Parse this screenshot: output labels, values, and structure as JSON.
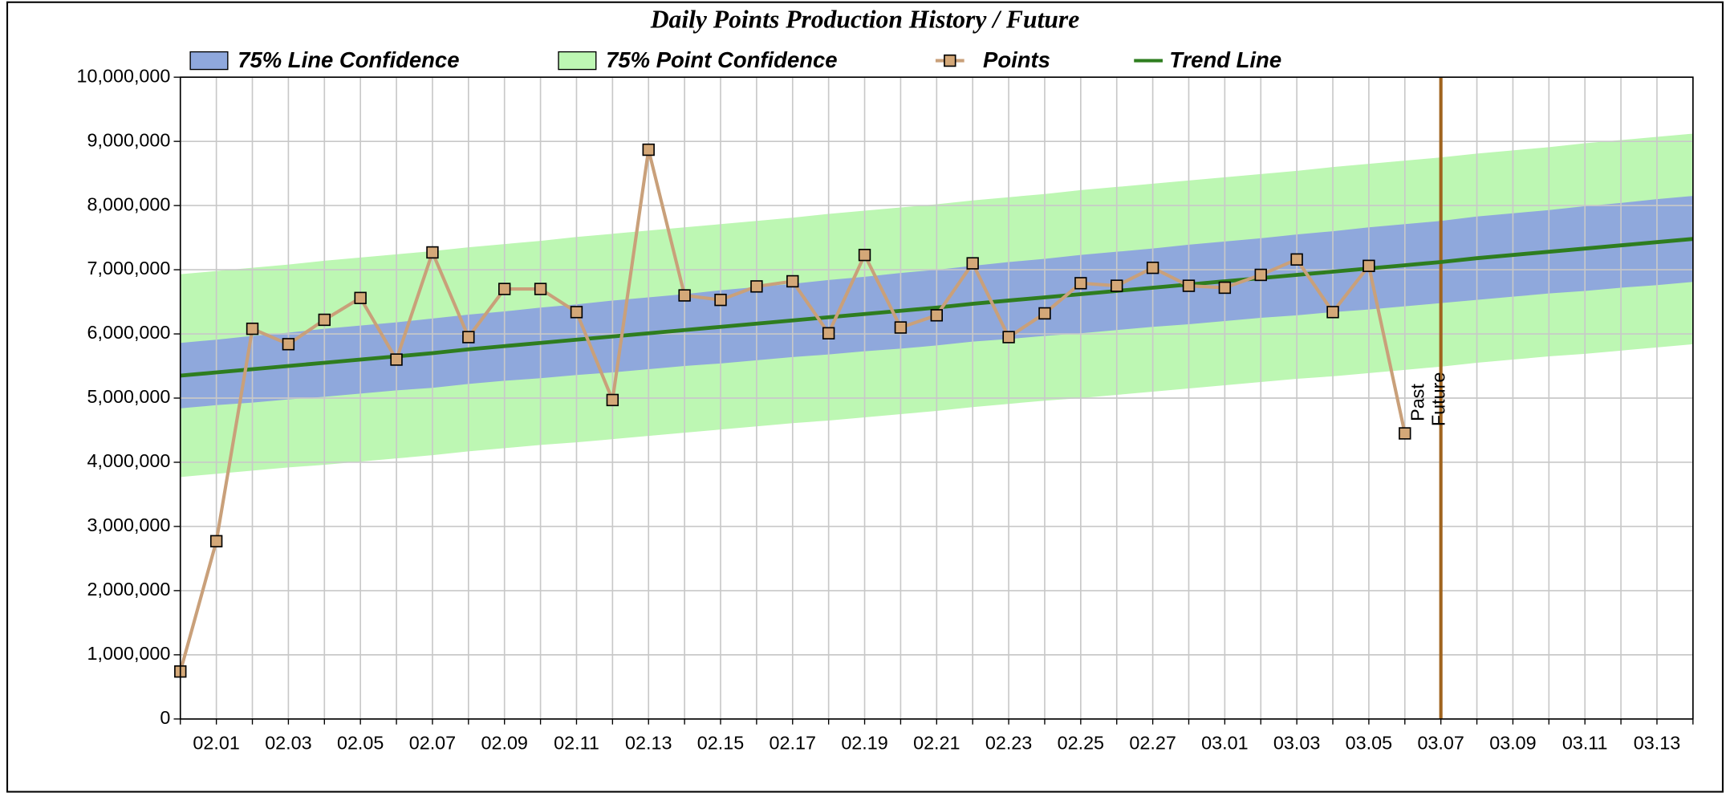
{
  "chart_data": {
    "type": "line",
    "title": "Daily Points Production History / Future",
    "categories": [
      null,
      "02.01",
      null,
      "02.03",
      null,
      "02.05",
      null,
      "02.07",
      null,
      "02.09",
      null,
      "02.11",
      null,
      "02.13",
      null,
      "02.15",
      null,
      "02.17",
      null,
      "02.19",
      null,
      "02.21",
      null,
      "02.23",
      null,
      "02.25",
      null,
      "02.27",
      null,
      "03.01",
      null,
      "03.03",
      null,
      "03.05",
      null,
      "03.07",
      null,
      "03.09",
      null,
      "03.11",
      null,
      "03.13",
      null
    ],
    "ylim": [
      0,
      10000000
    ],
    "yticks": [
      0,
      {
        "value": 1000000,
        "label": "1,000,000"
      },
      {
        "value": 2000000,
        "label": "2,000,000"
      },
      {
        "value": 3000000,
        "label": "3,000,000"
      },
      {
        "value": 4000000,
        "label": "4,000,000"
      },
      {
        "value": 5000000,
        "label": "5,000,000"
      },
      {
        "value": 6000000,
        "label": "6,000,000"
      },
      {
        "value": 7000000,
        "label": "7,000,000"
      },
      {
        "value": 8000000,
        "label": "8,000,000"
      },
      {
        "value": 9000000,
        "label": "9,000,000"
      },
      {
        "value": 10000000,
        "label": "10,000,000"
      }
    ],
    "grid": true,
    "bands": [
      {
        "name": "75% Point Confidence",
        "color": "#bdf7b3",
        "lower": [
          3770000,
          3820000,
          3870000,
          3920000,
          3960000,
          4010000,
          4060000,
          4110000,
          4170000,
          4220000,
          4270000,
          4310000,
          4360000,
          4410000,
          4460000,
          4510000,
          4560000,
          4610000,
          4650000,
          4700000,
          4750000,
          4800000,
          4860000,
          4910000,
          4960000,
          5000000,
          5050000,
          5100000,
          5150000,
          5200000,
          5250000,
          5300000,
          5340000,
          5390000,
          5440000,
          5490000,
          5550000,
          5600000,
          5650000,
          5690000,
          5740000,
          5790000,
          5840000
        ],
        "upper": [
          6930000,
          6980000,
          7030000,
          7080000,
          7140000,
          7190000,
          7240000,
          7290000,
          7350000,
          7400000,
          7450000,
          7510000,
          7560000,
          7610000,
          7660000,
          7710000,
          7760000,
          7810000,
          7870000,
          7920000,
          7970000,
          8020000,
          8080000,
          8130000,
          8180000,
          8240000,
          8290000,
          8340000,
          8390000,
          8440000,
          8490000,
          8540000,
          8600000,
          8650000,
          8700000,
          8750000,
          8810000,
          8860000,
          8910000,
          8970000,
          9020000,
          9070000,
          9120000
        ]
      },
      {
        "name": "75% Line Confidence",
        "color": "#8fa8dc",
        "lower": [
          4840000,
          4890000,
          4930000,
          4980000,
          5020000,
          5070000,
          5120000,
          5160000,
          5220000,
          5270000,
          5310000,
          5360000,
          5400000,
          5450000,
          5500000,
          5540000,
          5590000,
          5640000,
          5680000,
          5730000,
          5770000,
          5820000,
          5880000,
          5920000,
          5970000,
          6010000,
          6060000,
          6110000,
          6150000,
          6200000,
          6250000,
          6290000,
          6340000,
          6380000,
          6430000,
          6480000,
          6530000,
          6580000,
          6630000,
          6670000,
          6720000,
          6760000,
          6810000
        ],
        "upper": [
          5860000,
          5910000,
          5970000,
          6020000,
          6080000,
          6130000,
          6180000,
          6240000,
          6300000,
          6350000,
          6410000,
          6460000,
          6520000,
          6570000,
          6620000,
          6680000,
          6730000,
          6780000,
          6840000,
          6890000,
          6950000,
          7000000,
          7060000,
          7120000,
          7170000,
          7230000,
          7280000,
          7330000,
          7390000,
          7440000,
          7490000,
          7550000,
          7600000,
          7660000,
          7710000,
          7760000,
          7830000,
          7880000,
          7930000,
          7990000,
          8040000,
          8100000,
          8150000
        ]
      }
    ],
    "series": [
      {
        "name": "Points",
        "color": "#c9a07a",
        "marker_color": "#d4a878",
        "values": [
          740000,
          2770000,
          6080000,
          5840000,
          6220000,
          6560000,
          5600000,
          7270000,
          5950000,
          6700000,
          6700000,
          6340000,
          4970000,
          8870000,
          6600000,
          6530000,
          6740000,
          6820000,
          6010000,
          7230000,
          6100000,
          6290000,
          7100000,
          5950000,
          6320000,
          6790000,
          6750000,
          7030000,
          6750000,
          6720000,
          6920000,
          7160000,
          6340000,
          7060000,
          4450000,
          null,
          null,
          null,
          null,
          null,
          null,
          null,
          null
        ]
      },
      {
        "name": "Trend Line",
        "color": "#2e7d1f",
        "values": [
          5350000,
          5400000,
          5450000,
          5500000,
          5550000,
          5600000,
          5650000,
          5700000,
          5760000,
          5810000,
          5860000,
          5910000,
          5960000,
          6010000,
          6060000,
          6110000,
          6160000,
          6210000,
          6260000,
          6310000,
          6360000,
          6410000,
          6470000,
          6520000,
          6570000,
          6620000,
          6670000,
          6720000,
          6770000,
          6820000,
          6870000,
          6920000,
          6970000,
          7020000,
          7070000,
          7120000,
          7180000,
          7230000,
          7280000,
          7330000,
          7380000,
          7430000,
          7480000
        ]
      }
    ],
    "divider": {
      "category": 35,
      "color": "#a0641e",
      "labels": [
        "Past",
        "Future"
      ]
    }
  }
}
